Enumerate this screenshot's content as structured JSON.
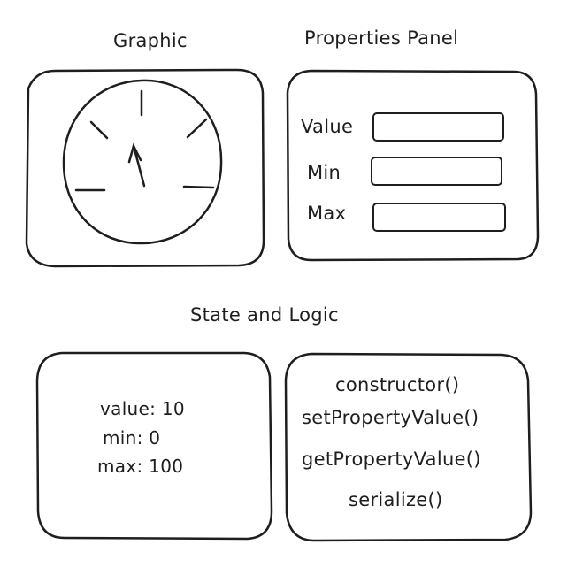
{
  "headings": {
    "graphic": "Graphic",
    "properties_panel": "Properties Panel",
    "state_and_logic": "State and Logic"
  },
  "graphic": {
    "gauge_icon": "gauge-dial-icon"
  },
  "properties_panel": {
    "fields": [
      {
        "label": "Value",
        "value": ""
      },
      {
        "label": "Min",
        "value": ""
      },
      {
        "label": "Max",
        "value": ""
      }
    ]
  },
  "state": {
    "lines": [
      "value: 10",
      "min: 0",
      "max: 100"
    ]
  },
  "logic": {
    "methods": [
      "constructor()",
      "setPropertyValue()",
      "getPropertyValue()",
      "serialize()"
    ]
  },
  "colors": {
    "stroke": "#1e1e1e",
    "background": "#ffffff"
  }
}
